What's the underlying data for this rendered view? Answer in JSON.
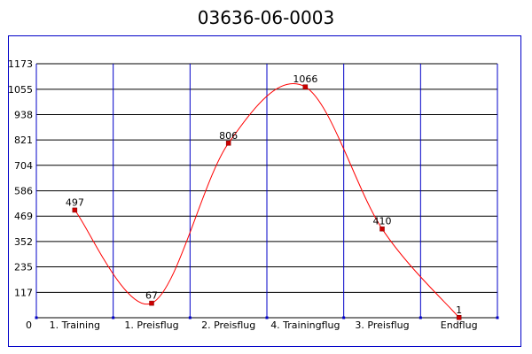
{
  "chart_data": {
    "type": "line",
    "title": "03636-06-0003",
    "categories": [
      "1. Training",
      "1. Preisflug",
      "2. Preisflug",
      "4. Trainingflug",
      "3. Preisflug",
      "Endflug"
    ],
    "series": [
      {
        "values": [
          497,
          67,
          806,
          1066,
          410,
          1
        ]
      }
    ],
    "y_ticks": [
      "0",
      "117",
      "235",
      "352",
      "469",
      "586",
      "704",
      "821",
      "938",
      "1055",
      "1173"
    ],
    "ylim": [
      0,
      1173
    ],
    "xlabel": "",
    "ylabel": "",
    "grid": true,
    "colors": {
      "line": "#ff0000",
      "marker": "#cc0000",
      "grid_horizontal": "#000000",
      "grid_vertical": "#0000c8",
      "frame": "#0000c8"
    }
  }
}
